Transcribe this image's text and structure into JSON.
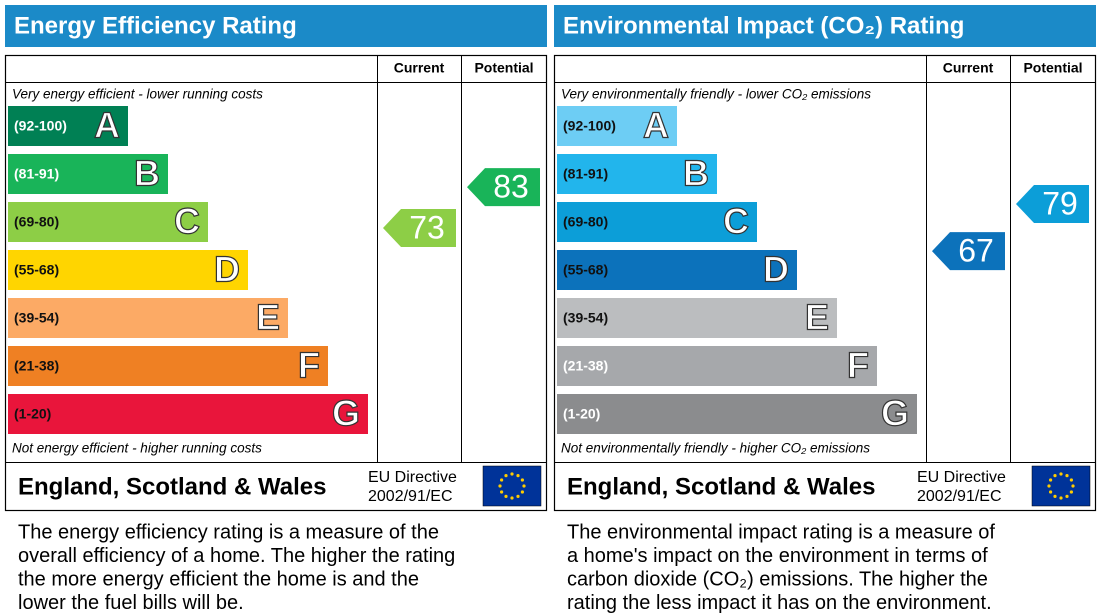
{
  "panels": [
    {
      "title": "Energy Efficiency Rating",
      "header_current": "Current",
      "header_potential": "Potential",
      "top_note": "Very energy efficient - lower running costs",
      "bottom_note": "Not energy efficient - higher running costs",
      "bands": [
        {
          "range": "(92-100)",
          "letter": "A",
          "color": "#008054",
          "text_color": "#ffffff"
        },
        {
          "range": "(81-91)",
          "letter": "B",
          "color": "#19b459",
          "text_color": "#ffffff"
        },
        {
          "range": "(69-80)",
          "letter": "C",
          "color": "#8dce46",
          "text_color": "#111111"
        },
        {
          "range": "(55-68)",
          "letter": "D",
          "color": "#ffd500",
          "text_color": "#111111"
        },
        {
          "range": "(39-54)",
          "letter": "E",
          "color": "#fcaa65",
          "text_color": "#111111"
        },
        {
          "range": "(21-38)",
          "letter": "F",
          "color": "#ef8023",
          "text_color": "#111111"
        },
        {
          "range": "(1-20)",
          "letter": "G",
          "color": "#e9153b",
          "text_color": "#111111"
        }
      ],
      "current": 73,
      "potential": 83,
      "region": "England, Scotland & Wales",
      "directive": [
        "EU Directive",
        "2002/91/EC"
      ],
      "description": [
        "The energy efficiency rating is a measure of the",
        "overall efficiency of a home. The higher the rating",
        "the more energy efficient the home is and the",
        "lower the fuel bills will be."
      ]
    },
    {
      "title": "Environmental Impact (CO₂) Rating",
      "header_current": "Current",
      "header_potential": "Potential",
      "top_note": "Very environmentally friendly - lower CO₂ emissions",
      "bottom_note": "Not environmentally friendly - higher CO₂ emissions",
      "bands": [
        {
          "range": "(92-100)",
          "letter": "A",
          "color": "#6dcdf4",
          "text_color": "#111111"
        },
        {
          "range": "(81-91)",
          "letter": "B",
          "color": "#22b5ec",
          "text_color": "#111111"
        },
        {
          "range": "(69-80)",
          "letter": "C",
          "color": "#0c9ed8",
          "text_color": "#111111"
        },
        {
          "range": "(55-68)",
          "letter": "D",
          "color": "#0c72bb",
          "text_color": "#111111"
        },
        {
          "range": "(39-54)",
          "letter": "E",
          "color": "#bbbdbf",
          "text_color": "#111111"
        },
        {
          "range": "(21-38)",
          "letter": "F",
          "color": "#a6a8ab",
          "text_color": "#ffffff"
        },
        {
          "range": "(1-20)",
          "letter": "G",
          "color": "#8b8c8e",
          "text_color": "#ffffff"
        }
      ],
      "current": 67,
      "potential": 79,
      "region": "England, Scotland & Wales",
      "directive": [
        "EU Directive",
        "2002/91/EC"
      ],
      "description": [
        "The environmental impact rating is a measure of",
        "a home's impact on the environment in terms of",
        "carbon dioxide (CO₂) emissions. The higher the",
        "rating the less impact it has on the environment."
      ]
    }
  ]
}
